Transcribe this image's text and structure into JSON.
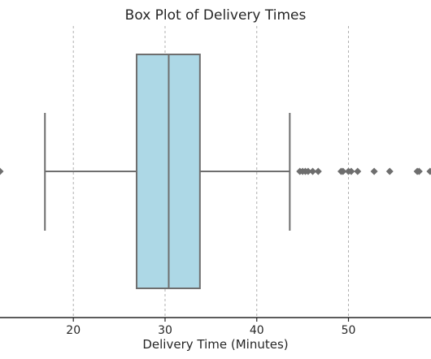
{
  "chart_data": {
    "type": "box",
    "title": "Box Plot of Delivery Times",
    "xlabel": "Delivery Time (Minutes)",
    "ylabel": "",
    "orientation": "horizontal",
    "xlim": [
      12,
      59
    ],
    "xticks": [
      20,
      30,
      40,
      50
    ],
    "grid": "x-dashed",
    "box": {
      "min": 16.9,
      "q1": 26.9,
      "median": 30.4,
      "q3": 33.8,
      "max": 43.6,
      "fill_color": "#add8e6"
    },
    "outliers": [
      12.0,
      44.7,
      45.0,
      45.3,
      45.6,
      46.1,
      46.7,
      49.2,
      49.4,
      50.0,
      50.3,
      51.0,
      52.8,
      54.5,
      57.5,
      57.7,
      58.9
    ],
    "colors": {
      "line": "#6e6e6e",
      "grid": "#b0b0b0",
      "axis": "#262626"
    }
  }
}
